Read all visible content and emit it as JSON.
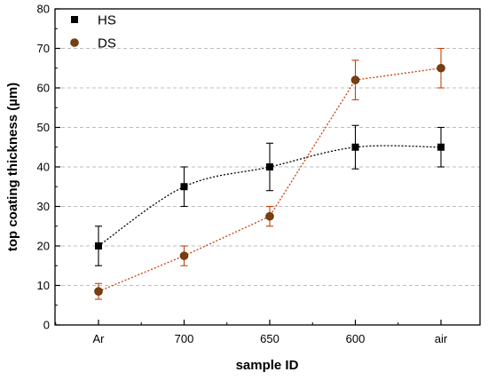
{
  "chart_data": {
    "type": "scatter",
    "xlabel": "sample ID",
    "ylabel": "top coating thickness (µm)",
    "categories": [
      "Ar",
      "700",
      "650",
      "600",
      "air"
    ],
    "ylim": [
      0,
      80
    ],
    "yticks": [
      0,
      10,
      20,
      30,
      40,
      50,
      60,
      70,
      80
    ],
    "grid": "horizontal dashed",
    "legend_position": "top-left",
    "series": [
      {
        "name": "HS",
        "marker": "square",
        "color": "#000000",
        "line_color": "#000000",
        "line_style": "dotted fit",
        "values": [
          20,
          35,
          40,
          45,
          45
        ],
        "errors": [
          5,
          5,
          6,
          5.5,
          5
        ]
      },
      {
        "name": "DS",
        "marker": "circle",
        "color": "#7a3e10",
        "line_color": "#c8400a",
        "error_color": "#c8400a",
        "line_style": "dotted",
        "values": [
          8.5,
          17.5,
          27.5,
          62,
          65
        ],
        "errors": [
          2,
          2.5,
          2.5,
          5,
          5
        ]
      }
    ]
  }
}
